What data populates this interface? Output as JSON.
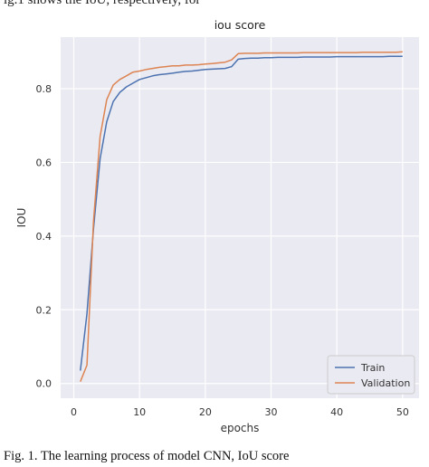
{
  "page": {
    "top_text": "ig.1 shows the IoU, respectively, for",
    "caption": "Fig. 1.   The learning process of  model CNN, IoU score"
  },
  "colors": {
    "background": "#eaeaf2",
    "grid": "#ffffff",
    "train": "#4c72b0",
    "validation": "#dd8452"
  },
  "chart_data": {
    "type": "line",
    "title": "iou score",
    "xlabel": "epochs",
    "ylabel": "IOU",
    "xlim": [
      -2,
      52.5
    ],
    "ylim": [
      -0.04,
      0.94
    ],
    "xticks": [
      0,
      10,
      20,
      30,
      40,
      50
    ],
    "yticks": [
      0.0,
      0.2,
      0.4,
      0.6,
      0.8
    ],
    "ytick_labels": [
      "0.0",
      "0.2",
      "0.4",
      "0.6",
      "0.8"
    ],
    "grid": true,
    "legend_position": "lower-right",
    "series": [
      {
        "name": "Train",
        "color": "#4c72b0",
        "x": [
          1,
          2,
          3,
          4,
          5,
          6,
          7,
          8,
          9,
          10,
          11,
          12,
          13,
          14,
          15,
          16,
          17,
          18,
          19,
          20,
          21,
          22,
          23,
          24,
          25,
          26,
          27,
          28,
          29,
          30,
          31,
          32,
          33,
          34,
          35,
          36,
          37,
          38,
          39,
          40,
          41,
          42,
          43,
          44,
          45,
          46,
          47,
          48,
          49,
          50
        ],
        "y": [
          0.035,
          0.19,
          0.42,
          0.61,
          0.71,
          0.765,
          0.79,
          0.805,
          0.815,
          0.825,
          0.83,
          0.835,
          0.838,
          0.84,
          0.842,
          0.845,
          0.847,
          0.848,
          0.85,
          0.852,
          0.853,
          0.854,
          0.855,
          0.86,
          0.88,
          0.882,
          0.883,
          0.883,
          0.884,
          0.884,
          0.885,
          0.885,
          0.885,
          0.885,
          0.886,
          0.886,
          0.886,
          0.886,
          0.886,
          0.887,
          0.887,
          0.887,
          0.887,
          0.887,
          0.887,
          0.887,
          0.887,
          0.888,
          0.888,
          0.888
        ]
      },
      {
        "name": "Validation",
        "color": "#dd8452",
        "x": [
          1,
          2,
          3,
          4,
          5,
          6,
          7,
          8,
          9,
          10,
          11,
          12,
          13,
          14,
          15,
          16,
          17,
          18,
          19,
          20,
          21,
          22,
          23,
          24,
          25,
          26,
          27,
          28,
          29,
          30,
          31,
          32,
          33,
          34,
          35,
          36,
          37,
          38,
          39,
          40,
          41,
          42,
          43,
          44,
          45,
          46,
          47,
          48,
          49,
          50
        ],
        "y": [
          0.005,
          0.05,
          0.44,
          0.67,
          0.77,
          0.81,
          0.825,
          0.835,
          0.845,
          0.848,
          0.852,
          0.855,
          0.858,
          0.86,
          0.862,
          0.862,
          0.864,
          0.864,
          0.865,
          0.867,
          0.868,
          0.87,
          0.872,
          0.878,
          0.895,
          0.896,
          0.896,
          0.896,
          0.897,
          0.897,
          0.897,
          0.897,
          0.897,
          0.897,
          0.898,
          0.898,
          0.898,
          0.898,
          0.898,
          0.898,
          0.898,
          0.898,
          0.898,
          0.899,
          0.899,
          0.899,
          0.899,
          0.899,
          0.899,
          0.9
        ]
      }
    ]
  }
}
